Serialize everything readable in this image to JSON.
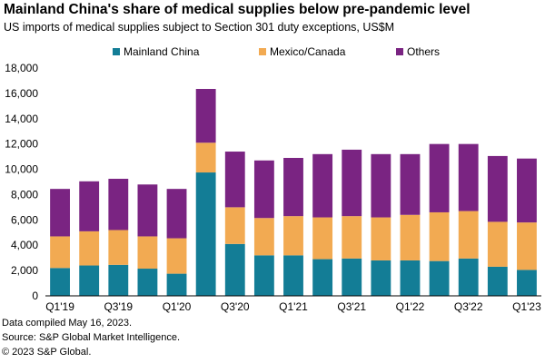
{
  "title": "Mainland China's share of medical supplies below pre-pandemic level",
  "subtitle": "US imports of medical supplies subject to Section 301 duty exceptions, US$M",
  "footer": {
    "line1": "Data compiled May 16, 2023.",
    "line2": "Source: S&P Global Market Intelligence.",
    "line3": "© 2023 S&P Global."
  },
  "colors": {
    "Mainland China": "#137d96",
    "Mexico/Canada": "#f2aa52",
    "Others": "#7a2482"
  },
  "chart_data": {
    "type": "bar",
    "stacked": true,
    "title": "Mainland China's share of medical supplies below pre-pandemic level",
    "xlabel": "",
    "ylabel": "US$M",
    "ylim": [
      0,
      18000
    ],
    "yticks": [
      0,
      2000,
      4000,
      6000,
      8000,
      10000,
      12000,
      14000,
      16000,
      18000
    ],
    "ytick_labels": [
      "0",
      "2,000",
      "4,000",
      "6,000",
      "8,000",
      "10,000",
      "12,000",
      "14,000",
      "16,000",
      "18,000"
    ],
    "legend_position": "top",
    "categories": [
      "Q1'19",
      "Q2'19",
      "Q3'19",
      "Q4'19",
      "Q1'20",
      "Q2'20",
      "Q3'20",
      "Q4'20",
      "Q1'21",
      "Q2'21",
      "Q3'21",
      "Q4'21",
      "Q1'22",
      "Q2'22",
      "Q3'22",
      "Q4'22",
      "Q1'23"
    ],
    "x_tick_labels": [
      "Q1'19",
      "",
      "Q3'19",
      "",
      "Q1'20",
      "",
      "Q3'20",
      "",
      "Q1'21",
      "",
      "Q3'21",
      "",
      "Q1'22",
      "",
      "Q3'22",
      "",
      "Q1'23"
    ],
    "series": [
      {
        "name": "Mainland China",
        "values": [
          2200,
          2400,
          2450,
          2150,
          1750,
          9750,
          4100,
          3200,
          3200,
          2900,
          2950,
          2800,
          2800,
          2750,
          2950,
          2300,
          2050
        ]
      },
      {
        "name": "Mexico/Canada",
        "values": [
          2500,
          2700,
          2750,
          2550,
          2800,
          2350,
          2900,
          2950,
          3100,
          3300,
          3350,
          3400,
          3600,
          3850,
          3750,
          3550,
          3750
        ]
      },
      {
        "name": "Others",
        "values": [
          3750,
          3950,
          4050,
          4100,
          3900,
          4250,
          4400,
          4550,
          4600,
          5000,
          5250,
          5000,
          4800,
          5400,
          5300,
          5200,
          5050
        ]
      }
    ]
  }
}
